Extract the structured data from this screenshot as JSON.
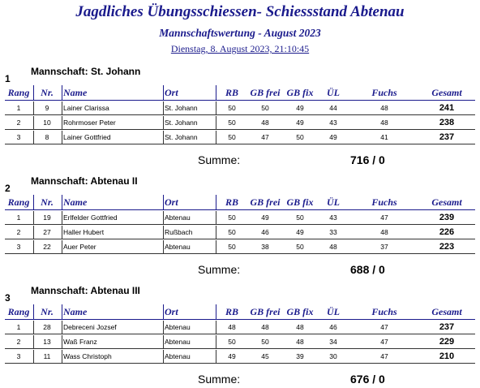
{
  "header": {
    "title": "Jagdliches Übungsschiessen- Schiessstand Abtenau",
    "subtitle": "Mannschaftswertung - August 2023",
    "date": "Dienstag, 8. August 2023, 21:10:45"
  },
  "columns": {
    "rang": "Rang",
    "nr": "Nr.",
    "name": "Name",
    "ort": "Ort",
    "rb": "RB",
    "gb_frei": "GB frei",
    "gb_fix": "GB fix",
    "ul": "ÜL",
    "fuchs": "Fuchs",
    "gesamt": "Gesamt"
  },
  "summe_label": "Summe:",
  "teams": [
    {
      "number": "1",
      "label": "Mannschaft: St. Johann",
      "rows": [
        {
          "rang": "1",
          "nr": "9",
          "name": "Lainer Clarissa",
          "ort": "St. Johann",
          "rb": "50",
          "gb_frei": "50",
          "gb_fix": "49",
          "ul": "44",
          "fuchs": "48",
          "gesamt": "241"
        },
        {
          "rang": "2",
          "nr": "10",
          "name": "Rohrmoser Peter",
          "ort": "St. Johann",
          "rb": "50",
          "gb_frei": "48",
          "gb_fix": "49",
          "ul": "43",
          "fuchs": "48",
          "gesamt": "238"
        },
        {
          "rang": "3",
          "nr": "8",
          "name": "Lainer Gottfried",
          "ort": "St. Johann",
          "rb": "50",
          "gb_frei": "47",
          "gb_fix": "50",
          "ul": "49",
          "fuchs": "41",
          "gesamt": "237"
        }
      ],
      "summe": "716 /  0"
    },
    {
      "number": "2",
      "label": "Mannschaft: Abtenau II",
      "rows": [
        {
          "rang": "1",
          "nr": "19",
          "name": "Erlfelder Gottfried",
          "ort": "Abtenau",
          "rb": "50",
          "gb_frei": "49",
          "gb_fix": "50",
          "ul": "43",
          "fuchs": "47",
          "gesamt": "239"
        },
        {
          "rang": "2",
          "nr": "27",
          "name": "Haller Hubert",
          "ort": "Rußbach",
          "rb": "50",
          "gb_frei": "46",
          "gb_fix": "49",
          "ul": "33",
          "fuchs": "48",
          "gesamt": "226"
        },
        {
          "rang": "3",
          "nr": "22",
          "name": "Auer Peter",
          "ort": "Abtenau",
          "rb": "50",
          "gb_frei": "38",
          "gb_fix": "50",
          "ul": "48",
          "fuchs": "37",
          "gesamt": "223"
        }
      ],
      "summe": "688 /  0"
    },
    {
      "number": "3",
      "label": "Mannschaft: Abtenau III",
      "rows": [
        {
          "rang": "1",
          "nr": "28",
          "name": "Debreceni Jozsef",
          "ort": "Abtenau",
          "rb": "48",
          "gb_frei": "48",
          "gb_fix": "48",
          "ul": "46",
          "fuchs": "47",
          "gesamt": "237"
        },
        {
          "rang": "2",
          "nr": "13",
          "name": "Waß Franz",
          "ort": "Abtenau",
          "rb": "50",
          "gb_frei": "50",
          "gb_fix": "48",
          "ul": "34",
          "fuchs": "47",
          "gesamt": "229"
        },
        {
          "rang": "3",
          "nr": "11",
          "name": "Wass Christoph",
          "ort": "Abtenau",
          "rb": "49",
          "gb_frei": "45",
          "gb_fix": "39",
          "ul": "30",
          "fuchs": "47",
          "gesamt": "210"
        }
      ],
      "summe": "676 /  0"
    }
  ]
}
